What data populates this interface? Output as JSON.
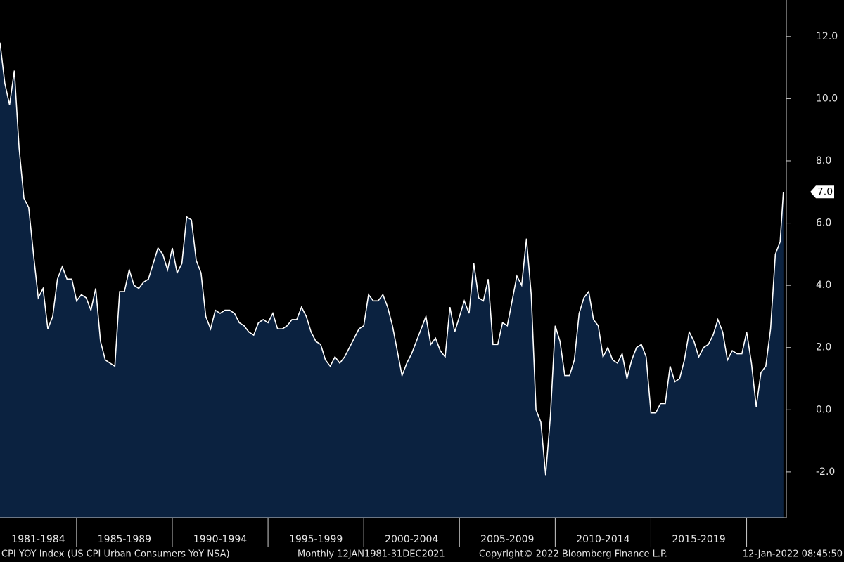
{
  "chart_data": {
    "type": "area",
    "x": [
      1981,
      1981.25,
      1981.5,
      1981.75,
      1982,
      1982.25,
      1982.5,
      1982.75,
      1983,
      1983.25,
      1983.5,
      1983.75,
      1984,
      1984.25,
      1984.5,
      1984.75,
      1985,
      1985.25,
      1985.5,
      1985.75,
      1986,
      1986.25,
      1986.5,
      1986.75,
      1987,
      1987.25,
      1987.5,
      1987.75,
      1988,
      1988.25,
      1988.5,
      1988.75,
      1989,
      1989.25,
      1989.5,
      1989.75,
      1990,
      1990.25,
      1990.5,
      1990.75,
      1991,
      1991.25,
      1991.5,
      1991.75,
      1992,
      1992.25,
      1992.5,
      1992.75,
      1993,
      1993.25,
      1993.5,
      1993.75,
      1994,
      1994.25,
      1994.5,
      1994.75,
      1995,
      1995.25,
      1995.5,
      1995.75,
      1996,
      1996.25,
      1996.5,
      1996.75,
      1997,
      1997.25,
      1997.5,
      1997.75,
      1998,
      1998.25,
      1998.5,
      1998.75,
      1999,
      1999.25,
      1999.5,
      1999.75,
      2000,
      2000.25,
      2000.5,
      2000.75,
      2001,
      2001.25,
      2001.5,
      2001.75,
      2002,
      2002.25,
      2002.5,
      2002.75,
      2003,
      2003.25,
      2003.5,
      2003.75,
      2004,
      2004.25,
      2004.5,
      2004.75,
      2005,
      2005.25,
      2005.5,
      2005.75,
      2006,
      2006.25,
      2006.5,
      2006.75,
      2007,
      2007.25,
      2007.5,
      2007.75,
      2008,
      2008.25,
      2008.5,
      2008.75,
      2009,
      2009.25,
      2009.5,
      2009.75,
      2010,
      2010.25,
      2010.5,
      2010.75,
      2011,
      2011.25,
      2011.5,
      2011.75,
      2012,
      2012.25,
      2012.5,
      2012.75,
      2013,
      2013.25,
      2013.5,
      2013.75,
      2014,
      2014.25,
      2014.5,
      2014.75,
      2015,
      2015.25,
      2015.5,
      2015.75,
      2016,
      2016.25,
      2016.5,
      2016.75,
      2017,
      2017.25,
      2017.5,
      2017.75,
      2018,
      2018.25,
      2018.5,
      2018.75,
      2019,
      2019.25,
      2019.5,
      2019.75,
      2020,
      2020.25,
      2020.5,
      2020.75,
      2021,
      2021.25,
      2021.5,
      2021.75,
      2021.92
    ],
    "series": [
      {
        "color": "#ffffff",
        "fill": "#0b2240",
        "values": [
          11.8,
          10.5,
          9.8,
          10.9,
          8.4,
          6.8,
          6.5,
          5.0,
          3.6,
          3.9,
          2.6,
          3.0,
          4.2,
          4.6,
          4.2,
          4.2,
          3.5,
          3.7,
          3.6,
          3.2,
          3.9,
          2.2,
          1.6,
          1.5,
          1.4,
          3.8,
          3.8,
          4.5,
          4.0,
          3.9,
          4.1,
          4.2,
          4.7,
          5.2,
          5.0,
          4.5,
          5.2,
          4.4,
          4.7,
          6.2,
          6.1,
          4.8,
          4.4,
          3.0,
          2.6,
          3.2,
          3.1,
          3.2,
          3.2,
          3.1,
          2.8,
          2.7,
          2.5,
          2.4,
          2.8,
          2.9,
          2.8,
          3.1,
          2.6,
          2.6,
          2.7,
          2.9,
          2.9,
          3.3,
          3.0,
          2.5,
          2.2,
          2.1,
          1.6,
          1.4,
          1.7,
          1.5,
          1.7,
          2.0,
          2.3,
          2.6,
          2.7,
          3.7,
          3.5,
          3.5,
          3.7,
          3.3,
          2.7,
          1.9,
          1.1,
          1.5,
          1.8,
          2.2,
          2.6,
          3.0,
          2.1,
          2.3,
          1.9,
          1.7,
          3.3,
          2.5,
          3.0,
          3.5,
          3.1,
          4.7,
          3.6,
          3.5,
          4.2,
          2.1,
          2.1,
          2.8,
          2.7,
          3.5,
          4.3,
          4.0,
          5.5,
          3.7,
          0.0,
          -0.4,
          -2.1,
          -0.2,
          2.7,
          2.2,
          1.1,
          1.1,
          1.6,
          3.1,
          3.6,
          3.8,
          2.9,
          2.7,
          1.7,
          2.0,
          1.6,
          1.5,
          1.8,
          1.0,
          1.6,
          2.0,
          2.1,
          1.7,
          -0.1,
          -0.1,
          0.2,
          0.2,
          1.4,
          0.9,
          1.0,
          1.6,
          2.5,
          2.2,
          1.7,
          2.0,
          2.1,
          2.4,
          2.9,
          2.5,
          1.6,
          1.9,
          1.8,
          1.8,
          2.5,
          1.5,
          0.1,
          1.2,
          1.4,
          2.6,
          5.0,
          5.4,
          7.0
        ]
      }
    ],
    "current_value_label": "7.0",
    "xlim": [
      1981,
      2022
    ],
    "xticks": [
      1985,
      1990,
      1995,
      2000,
      2005,
      2010,
      2015,
      2020
    ],
    "period_labels": [
      "1981-1984",
      "1985-1989",
      "1990-1994",
      "1995-1999",
      "2000-2004",
      "2005-2009",
      "2010-2014",
      "2015-2019"
    ],
    "ylim": [
      -3.47,
      13.17
    ],
    "yticks": [
      {
        "value": -2,
        "label": "-2.0"
      },
      {
        "value": 0,
        "label": "0.0"
      },
      {
        "value": 2,
        "label": "2.0"
      },
      {
        "value": 4,
        "label": "4.0"
      },
      {
        "value": 6,
        "label": "6.0"
      },
      {
        "value": 8,
        "label": "8.0"
      },
      {
        "value": 10,
        "label": "10.0"
      },
      {
        "value": 12,
        "label": "12.0"
      }
    ],
    "footer": [
      "CPI YOY Index (US CPI Urban Consumers YoY NSA)",
      "Monthly 12JAN1981-31DEC2021",
      "Copyright© 2022 Bloomberg Finance L.P.",
      "12-Jan-2022 08:45:50"
    ]
  }
}
